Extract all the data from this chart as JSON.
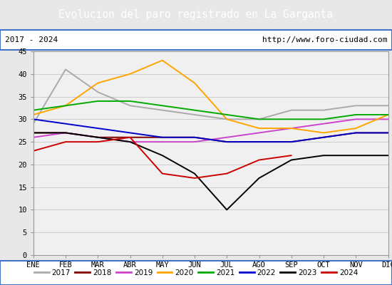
{
  "title": "Evolucion del paro registrado en La Garganta",
  "title_bg": "#4472c4",
  "subtitle_left": "2017 - 2024",
  "subtitle_right": "http://www.foro-ciudad.com",
  "months": [
    "ENE",
    "FEB",
    "MAR",
    "ABR",
    "MAY",
    "JUN",
    "JUL",
    "AGO",
    "SEP",
    "OCT",
    "NOV",
    "DIC"
  ],
  "ylim": [
    0,
    45
  ],
  "yticks": [
    0,
    5,
    10,
    15,
    20,
    25,
    30,
    35,
    40,
    45
  ],
  "series": {
    "2017": {
      "color": "#aaaaaa",
      "data": [
        29,
        41,
        36,
        33,
        32,
        31,
        30,
        30,
        32,
        32,
        33,
        33
      ]
    },
    "2018": {
      "color": "#800000",
      "data": [
        27,
        27,
        26,
        26,
        26,
        26,
        25,
        25,
        25,
        26,
        27,
        27
      ]
    },
    "2019": {
      "color": "#cc44cc",
      "data": [
        26,
        27,
        26,
        25,
        25,
        25,
        26,
        27,
        28,
        29,
        30,
        30
      ]
    },
    "2020": {
      "color": "#ffa500",
      "data": [
        31,
        33,
        38,
        40,
        43,
        38,
        30,
        28,
        28,
        27,
        28,
        31
      ]
    },
    "2021": {
      "color": "#00aa00",
      "data": [
        32,
        33,
        34,
        34,
        33,
        32,
        31,
        30,
        30,
        30,
        31,
        31
      ]
    },
    "2022": {
      "color": "#0000cc",
      "data": [
        30,
        29,
        28,
        27,
        26,
        26,
        25,
        25,
        25,
        26,
        27,
        27
      ]
    },
    "2023": {
      "color": "#000000",
      "data": [
        27,
        27,
        26,
        25,
        22,
        18,
        10,
        17,
        21,
        22,
        22,
        22
      ]
    },
    "2024": {
      "color": "#cc0000",
      "data": [
        23,
        25,
        25,
        26,
        18,
        17,
        18,
        21,
        22,
        null,
        null,
        null
      ]
    }
  },
  "legend_order": [
    "2017",
    "2018",
    "2019",
    "2020",
    "2021",
    "2022",
    "2023",
    "2024"
  ],
  "bg_color": "#e8e8e8",
  "plot_bg": "#f0f0f0",
  "outer_border_color": "#4472c4"
}
